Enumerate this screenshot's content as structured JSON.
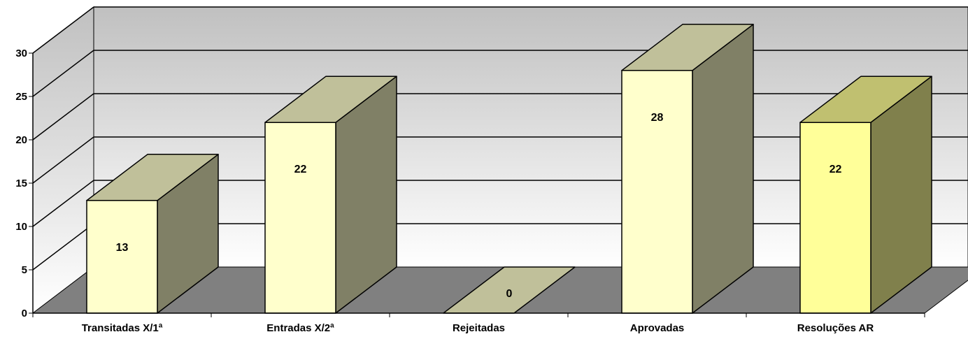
{
  "chart_data": {
    "type": "bar",
    "title": "",
    "xlabel": "",
    "ylabel": "",
    "three_d": true,
    "categories": [
      "Transitadas X/1ª",
      "Entradas X/2ª",
      "Rejeitadas",
      "Aprovadas",
      "Resoluções AR"
    ],
    "values": [
      13,
      22,
      0,
      28,
      22
    ],
    "ylim": [
      0,
      30
    ],
    "yticks": [
      0,
      5,
      10,
      15,
      20,
      25,
      30
    ],
    "grid": true,
    "legend": "none",
    "colors": {
      "bar_front": "#ffffcc",
      "bar_front_highlight": "#ffff99",
      "bar_top": "#c0c09a",
      "bar_top_highlight": "#c0c070",
      "bar_side": "#808066",
      "bar_side_highlight": "#80804c",
      "floor": "#808080",
      "wall_top": "#c0c0c0",
      "wall_bottom": "#ffffff"
    }
  }
}
